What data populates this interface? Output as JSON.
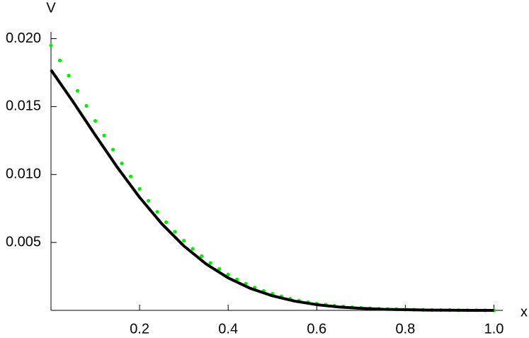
{
  "chart_data": {
    "type": "line",
    "x_label": "x",
    "y_label": "V",
    "xlim": [
      0,
      1.02
    ],
    "ylim": [
      0,
      0.0205
    ],
    "xticks": [
      0.2,
      0.4,
      0.6,
      0.8,
      {
        "value": 1,
        "label": "1.0"
      }
    ],
    "yticks": [
      0.005,
      {
        "value": 0.01,
        "label": "0.010"
      },
      0.015,
      {
        "value": 0.02,
        "label": "0.020"
      }
    ],
    "series": [
      {
        "style": "dots",
        "color": "#00ee00",
        "x": [
          0,
          0.02,
          0.04,
          0.06,
          0.08,
          0.1,
          0.12,
          0.14,
          0.16,
          0.18,
          0.2,
          0.22,
          0.24,
          0.26,
          0.28,
          0.3,
          0.32,
          0.34,
          0.36,
          0.38,
          0.4,
          0.42,
          0.44,
          0.46,
          0.48,
          0.5,
          0.52,
          0.54,
          0.56,
          0.58,
          0.6,
          0.62,
          0.64,
          0.66,
          0.68,
          0.7,
          0.72,
          0.74,
          0.76,
          0.78,
          0.8,
          0.82,
          0.84,
          0.86,
          0.88,
          0.9,
          0.92,
          0.94,
          0.96,
          0.98,
          1
        ],
        "values": [
          0.0195,
          0.0184,
          0.01728,
          0.01616,
          0.01505,
          0.01395,
          0.01287,
          0.01183,
          0.01082,
          0.00986,
          0.00894,
          0.00807,
          0.00725,
          0.00649,
          0.00579,
          0.00513,
          0.00453,
          0.00399,
          0.00349,
          0.00304,
          0.00264,
          0.00228,
          0.00196,
          0.00168,
          0.00143,
          0.00122,
          0.00103,
          0.00086,
          0.00072,
          0.0006,
          0.0005,
          0.00041,
          0.00034,
          0.00028,
          0.00023,
          0.00019,
          0.00015,
          0.00012,
          0.0001,
          8e-05,
          6e-05,
          5e-05,
          4e-05,
          3e-05,
          2e-05,
          2e-05,
          1e-05,
          1e-05,
          1e-05,
          0,
          0
        ]
      },
      {
        "style": "line",
        "color": "#000000",
        "x": [
          0,
          0.05,
          0.1,
          0.15,
          0.2,
          0.25,
          0.3,
          0.35,
          0.4,
          0.45,
          0.5,
          0.55,
          0.6,
          0.65,
          0.7,
          0.75,
          0.8,
          0.85,
          0.9,
          0.95,
          1
        ],
        "values": [
          0.0177,
          0.01535,
          0.0129,
          0.01052,
          0.00832,
          0.00638,
          0.00474,
          0.00342,
          0.00239,
          0.00162,
          0.00107,
          0.00068,
          0.00042,
          0.00025,
          0.00015,
          8e-05,
          5e-05,
          2e-05,
          1e-05,
          0,
          0
        ]
      }
    ]
  }
}
